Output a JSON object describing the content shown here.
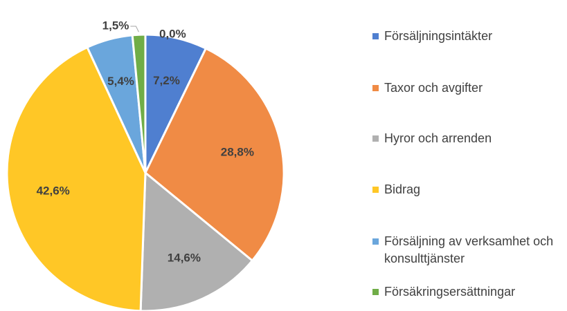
{
  "chart_data": {
    "type": "pie",
    "categories": [
      "Försäljningsintäkter",
      "Taxor och avgifter",
      "Hyror och arrenden",
      "Bidrag",
      "Försäljning av verksamhet och konsulttjänster",
      "Försäkringsersättningar",
      null
    ],
    "values": [
      7.2,
      28.8,
      14.6,
      42.6,
      5.4,
      1.5,
      0.0
    ],
    "value_labels": [
      "7,2%",
      "28,8%",
      "14,6%",
      "42,6%",
      "5,4%",
      "1,5%",
      "0,0%"
    ],
    "colors": [
      "#4f7fd0",
      "#f08b45",
      "#b0b0b0",
      "#ffc726",
      "#6aa6dc",
      "#70ad47",
      "#264478"
    ],
    "legend": "right"
  }
}
